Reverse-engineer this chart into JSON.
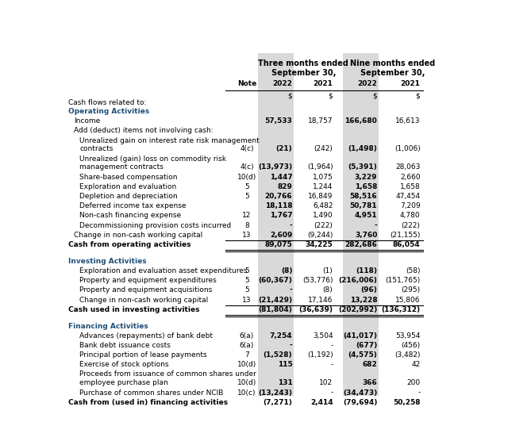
{
  "rows": [
    {
      "label": "Cash flows related to:",
      "note": "",
      "v1": "",
      "v2": "",
      "v3": "",
      "v4": "",
      "type": "intro"
    },
    {
      "label": "Operating Activities",
      "note": "",
      "v1": "",
      "v2": "",
      "v3": "",
      "v4": "",
      "type": "section_header"
    },
    {
      "label": "Income",
      "note": "",
      "v1": "57,533",
      "v2": "18,757",
      "v3": "166,680",
      "v4": "16,613",
      "type": "data",
      "bold_v1": true,
      "bold_v3": true,
      "indent": 1
    },
    {
      "label": "Add (deduct) items not involving cash:",
      "note": "",
      "v1": "",
      "v2": "",
      "v3": "",
      "v4": "",
      "type": "label_only",
      "indent": 1
    },
    {
      "label": "Unrealized gain on interest rate risk management",
      "label2": "    contracts",
      "note": "4(c)",
      "v1": "(21)",
      "v2": "(242)",
      "v3": "(1,498)",
      "v4": "(1,006)",
      "type": "data2",
      "bold_v1": true,
      "bold_v3": true,
      "indent": 2
    },
    {
      "label": "Unrealized (gain) loss on commodity risk",
      "label2": "    management contracts",
      "note": "4(c)",
      "v1": "(13,973)",
      "v2": "(1,964)",
      "v3": "(5,391)",
      "v4": "28,063",
      "type": "data2",
      "bold_v1": true,
      "bold_v3": true,
      "indent": 2
    },
    {
      "label": "Share-based compensation",
      "note": "10(d)",
      "v1": "1,447",
      "v2": "1,075",
      "v3": "3,229",
      "v4": "2,660",
      "type": "data",
      "bold_v1": true,
      "bold_v3": true,
      "indent": 2
    },
    {
      "label": "Exploration and evaluation",
      "note": "5",
      "v1": "829",
      "v2": "1,244",
      "v3": "1,658",
      "v4": "1,658",
      "type": "data",
      "bold_v1": true,
      "bold_v3": true,
      "indent": 2
    },
    {
      "label": "Depletion and depreciation",
      "note": "5",
      "v1": "20,766",
      "v2": "16,849",
      "v3": "58,516",
      "v4": "47,454",
      "type": "data",
      "bold_v1": true,
      "bold_v3": true,
      "indent": 2
    },
    {
      "label": "Deferred income tax expense",
      "note": "",
      "v1": "18,118",
      "v2": "6,482",
      "v3": "50,781",
      "v4": "7,209",
      "type": "data",
      "bold_v1": true,
      "bold_v3": true,
      "indent": 2
    },
    {
      "label": "Non-cash financing expense",
      "note": "12",
      "v1": "1,767",
      "v2": "1,490",
      "v3": "4,951",
      "v4": "4,780",
      "type": "data",
      "bold_v1": true,
      "bold_v3": true,
      "indent": 2
    },
    {
      "label": "Decommissioning provision costs incurred",
      "note": "8",
      "v1": "-",
      "v2": "(222)",
      "v3": "-",
      "v4": "(222)",
      "type": "data",
      "bold_v1": true,
      "bold_v3": true,
      "indent": 2
    },
    {
      "label": "Change in non-cash working capital",
      "note": "13",
      "v1": "2,609",
      "v2": "(9,244)",
      "v3": "3,760",
      "v4": "(21,155)",
      "type": "data",
      "bold_v1": true,
      "bold_v3": true,
      "indent": 1
    },
    {
      "label": "Cash from operating activities",
      "note": "",
      "v1": "89,075",
      "v2": "34,225",
      "v3": "282,686",
      "v4": "86,054",
      "type": "total",
      "indent": 0
    },
    {
      "label": "",
      "note": "",
      "v1": "",
      "v2": "",
      "v3": "",
      "v4": "",
      "type": "spacer"
    },
    {
      "label": "Investing Activities",
      "note": "",
      "v1": "",
      "v2": "",
      "v3": "",
      "v4": "",
      "type": "section_header"
    },
    {
      "label": "Exploration and evaluation asset expenditures",
      "note": "5",
      "v1": "(8)",
      "v2": "(1)",
      "v3": "(118)",
      "v4": "(58)",
      "type": "data",
      "bold_v1": true,
      "bold_v3": true,
      "indent": 2
    },
    {
      "label": "Property and equipment expenditures",
      "note": "5",
      "v1": "(60,367)",
      "v2": "(53,776)",
      "v3": "(216,006)",
      "v4": "(151,765)",
      "type": "data",
      "bold_v1": true,
      "bold_v3": true,
      "indent": 2
    },
    {
      "label": "Property and equipment acquisitions",
      "note": "5",
      "v1": "-",
      "v2": "(8)",
      "v3": "(96)",
      "v4": "(295)",
      "type": "data",
      "bold_v1": true,
      "bold_v3": true,
      "indent": 2
    },
    {
      "label": "Change in non-cash working capital",
      "note": "13",
      "v1": "(21,429)",
      "v2": "17,146",
      "v3": "13,228",
      "v4": "15,806",
      "type": "data",
      "bold_v1": true,
      "bold_v3": true,
      "indent": 2
    },
    {
      "label": "Cash used in investing activities",
      "note": "",
      "v1": "(81,804)",
      "v2": "(36,639)",
      "v3": "(202,992)",
      "v4": "(136,312)",
      "type": "total",
      "indent": 0
    },
    {
      "label": "",
      "note": "",
      "v1": "",
      "v2": "",
      "v3": "",
      "v4": "",
      "type": "spacer"
    },
    {
      "label": "Financing Activities",
      "note": "",
      "v1": "",
      "v2": "",
      "v3": "",
      "v4": "",
      "type": "section_header"
    },
    {
      "label": "Advances (repayments) of bank debt",
      "note": "6(a)",
      "v1": "7,254",
      "v2": "3,504",
      "v3": "(41,017)",
      "v4": "53,954",
      "type": "data",
      "bold_v1": true,
      "bold_v3": true,
      "indent": 2
    },
    {
      "label": "Bank debt issuance costs",
      "note": "6(a)",
      "v1": "-",
      "v2": "-",
      "v3": "(677)",
      "v4": "(456)",
      "type": "data",
      "bold_v1": true,
      "bold_v3": true,
      "indent": 2
    },
    {
      "label": "Principal portion of lease payments",
      "note": "7",
      "v1": "(1,528)",
      "v2": "(1,192)",
      "v3": "(4,575)",
      "v4": "(3,482)",
      "type": "data",
      "bold_v1": true,
      "bold_v3": true,
      "indent": 2
    },
    {
      "label": "Exercise of stock options",
      "note": "10(d)",
      "v1": "115",
      "v2": "-",
      "v3": "682",
      "v4": "42",
      "type": "data",
      "bold_v1": true,
      "bold_v3": true,
      "indent": 2
    },
    {
      "label": "Proceeds from issuance of common shares under",
      "label2": "    employee purchase plan",
      "note": "10(d)",
      "v1": "131",
      "v2": "102",
      "v3": "366",
      "v4": "200",
      "type": "data2",
      "bold_v1": true,
      "bold_v3": true,
      "indent": 2
    },
    {
      "label": "Purchase of common shares under NCIB",
      "note": "10(c)",
      "v1": "(13,243)",
      "v2": "-",
      "v3": "(34,473)",
      "v4": "-",
      "type": "data",
      "bold_v1": true,
      "bold_v3": true,
      "indent": 2
    },
    {
      "label": "Cash from (used in) financing activities",
      "note": "",
      "v1": "(7,271)",
      "v2": "2,414",
      "v3": "(79,694)",
      "v4": "50,258",
      "type": "total",
      "indent": 0
    }
  ],
  "shaded_col_color": "#d9d9d9",
  "section_header_color": "#1f4e79",
  "bg_color": "#ffffff",
  "font_size": 6.5,
  "header_font_size": 7.0,
  "font_family": "DejaVu Sans"
}
